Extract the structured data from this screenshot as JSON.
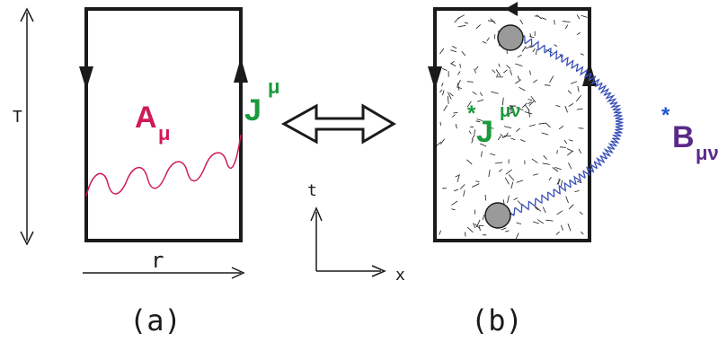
{
  "labels": {
    "T": "T",
    "r": "r",
    "t": "t",
    "x": "x",
    "panel_a": "(a)",
    "panel_b": "(b)"
  },
  "panel_a": {
    "gauge_field": {
      "base": "A",
      "sub": "μ"
    },
    "current": {
      "base": "J",
      "sup": "μ"
    }
  },
  "panel_b": {
    "dual_current": {
      "star": "*",
      "base": "J",
      "sup": "μν"
    },
    "dual_field": {
      "star": "*",
      "base": "B",
      "sub": "μν"
    }
  },
  "colors": {
    "ink": "#1a1a1a",
    "gauge_field": "#d01a55",
    "current": "#1a9a3a",
    "dual_field_line": "#3a50b8",
    "dual_field_label": "#5a2a8a",
    "star": "#2255cc",
    "monopole": "#9a9a9a"
  }
}
